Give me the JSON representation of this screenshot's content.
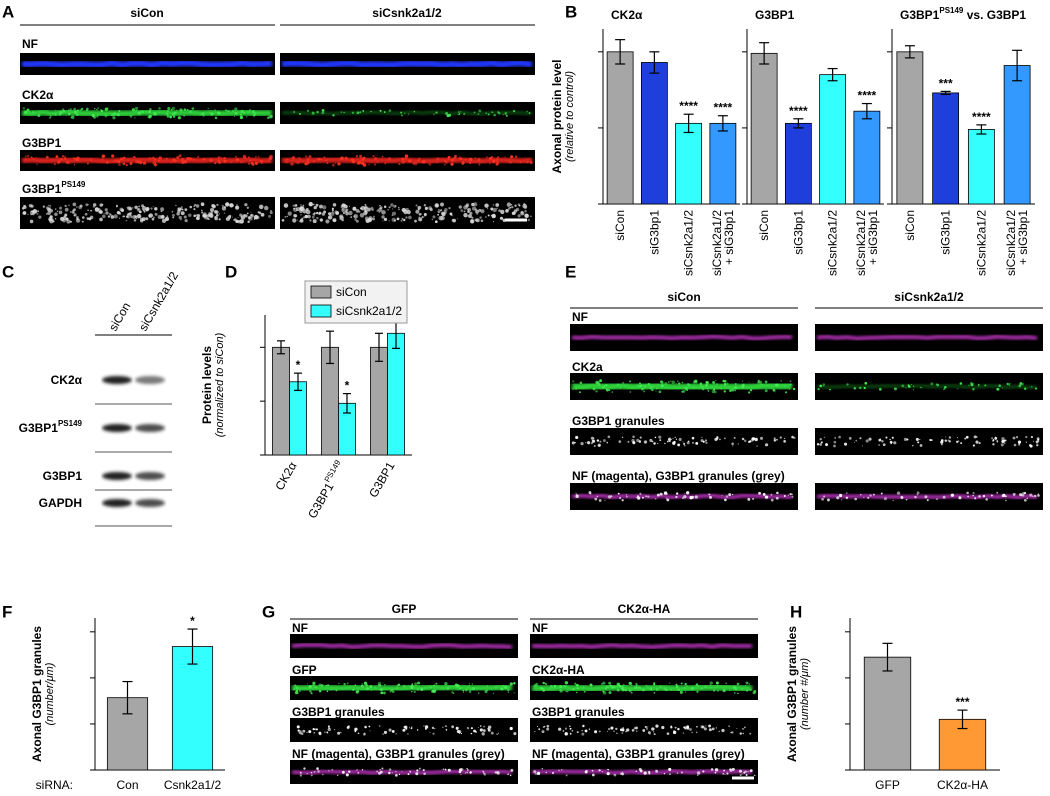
{
  "figure": {
    "panel_letters": [
      "A",
      "B",
      "C",
      "D",
      "E",
      "F",
      "G",
      "H"
    ],
    "A": {
      "columns": [
        "siCon",
        "siCsnk2a1/2"
      ],
      "rows": [
        "NF",
        "CK2α",
        "G3BP1",
        {
          "text": "G3BP1",
          "sup": "PS149"
        }
      ]
    },
    "C": {
      "columns": [
        "siCon",
        "siCsnk2a1/2"
      ],
      "rows": [
        "CK2α",
        {
          "text": "G3BP1",
          "sup": "PS149"
        },
        "G3BP1",
        "GAPDH"
      ]
    },
    "E": {
      "columns": [
        "siCon",
        "siCsnk2a1/2"
      ],
      "rows": [
        "NF",
        "CK2a",
        "G3BP1 granules",
        "NF (magenta), G3BP1 granules (grey)"
      ]
    },
    "G": {
      "columns": [
        {
          "title": "GFP",
          "rows": [
            "NF",
            "GFP",
            "G3BP1 granules",
            "NF (magenta), G3BP1 granules (grey)"
          ]
        },
        {
          "title": "CK2α-HA",
          "rows": [
            "NF",
            "CK2α-HA",
            "G3BP1 granules",
            "NF (magenta), G3BP1 granules (grey)"
          ]
        }
      ]
    }
  },
  "chart_data": [
    {
      "type": "bar",
      "title": "CK2α",
      "ylabel": "Axonal protein level",
      "ylabel_note": "(relative to control)",
      "categories": [
        [
          "siCon"
        ],
        [
          "siG3bp1"
        ],
        [
          "siCsnk2a1/2"
        ],
        [
          "siCsnk2a1/2",
          "+ siG3bp1"
        ]
      ],
      "values": [
        1.0,
        0.93,
        0.53,
        0.53
      ],
      "errors": [
        0.08,
        0.07,
        0.06,
        0.05
      ],
      "annotations": [
        null,
        null,
        "****",
        "****"
      ],
      "colors": [
        "#a6a6a6",
        "#1f3fdd",
        "#33ffff",
        "#3399ff"
      ],
      "ylim": [
        0,
        1.15
      ],
      "yticks": [
        0,
        0.5,
        1
      ],
      "tick_labels": true
    },
    {
      "type": "bar",
      "title": "G3BP1",
      "categories": [
        [
          "siCon"
        ],
        [
          "siG3bp1"
        ],
        [
          "siCsnk2a1/2"
        ],
        [
          "siCsnk2a1/2",
          "+ siG3bp1"
        ]
      ],
      "values": [
        0.99,
        0.53,
        0.85,
        0.61
      ],
      "errors": [
        0.07,
        0.03,
        0.04,
        0.05
      ],
      "annotations": [
        null,
        "****",
        null,
        "****"
      ],
      "colors": [
        "#a6a6a6",
        "#1f3fdd",
        "#33ffff",
        "#3399ff"
      ],
      "ylim": [
        0,
        1.15
      ],
      "yticks": [
        0,
        0.5,
        1
      ],
      "tick_labels": false
    },
    {
      "type": "bar",
      "title": {
        "text": "G3BP1",
        "sup": "PS149",
        "after": " vs. G3BP1"
      },
      "categories": [
        [
          "siCon"
        ],
        [
          "siG3bp1"
        ],
        [
          "siCsnk2a1/2"
        ],
        [
          "siCsnk2a1/2",
          "+ siG3bp1"
        ]
      ],
      "values": [
        1.0,
        0.73,
        0.49,
        0.91
      ],
      "errors": [
        0.04,
        0.01,
        0.03,
        0.1
      ],
      "annotations": [
        null,
        "***",
        "****",
        null
      ],
      "colors": [
        "#a6a6a6",
        "#1f3fdd",
        "#33ffff",
        "#3399ff"
      ],
      "ylim": [
        0,
        1.15
      ],
      "yticks": [
        0,
        0.5,
        1
      ],
      "tick_labels": false
    },
    {
      "type": "grouped_bar",
      "ylabel": "Protein levels",
      "ylabel_note": "(normalized to siCon)",
      "categories": [
        "CK2α",
        {
          "text": "G3BP1",
          "sup": "PS149"
        },
        "G3BP1"
      ],
      "series": [
        {
          "name": "siCon",
          "color": "#a6a6a6",
          "values": [
            1.0,
            1.0,
            1.0
          ],
          "errors": [
            0.06,
            0.15,
            0.13
          ],
          "annotations": [
            null,
            null,
            null
          ]
        },
        {
          "name": "siCsnk2a1/2",
          "color": "#33ffff",
          "values": [
            0.68,
            0.48,
            1.13
          ],
          "errors": [
            0.08,
            0.09,
            0.14
          ],
          "annotations": [
            "*",
            "*",
            null
          ]
        }
      ],
      "ylim": [
        0,
        1.3
      ],
      "yticks": [
        0,
        0.5,
        1
      ],
      "tick_labels": true,
      "legend": "top"
    },
    {
      "type": "bar",
      "ylabel": "Axonal G3BP1 granules",
      "ylabel_note": "(number/μm)",
      "xlabel_prefix": "siRNA:",
      "categories": [
        "Con",
        "Csnk2a1/2"
      ],
      "values": [
        0.157,
        0.268
      ],
      "errors": [
        0.035,
        0.038
      ],
      "annotations": [
        null,
        "*"
      ],
      "colors": [
        "#a6a6a6",
        "#33ffff"
      ],
      "ylim": [
        0,
        0.33
      ],
      "yticks": [
        0,
        0.1,
        0.2,
        0.3
      ],
      "tick_labels": true
    },
    {
      "type": "bar",
      "ylabel": "Axonal G3BP1 granules",
      "ylabel_note": "(number #/μm)",
      "categories": [
        "GFP",
        "CK2α-HA"
      ],
      "values": [
        0.245,
        0.11
      ],
      "errors": [
        0.03,
        0.02
      ],
      "annotations": [
        null,
        "***"
      ],
      "colors": [
        "#a6a6a6",
        "#ff9933"
      ],
      "ylim": [
        0,
        0.33
      ],
      "yticks": [
        0,
        0.1,
        0.2,
        0.3
      ],
      "tick_labels": true
    }
  ]
}
